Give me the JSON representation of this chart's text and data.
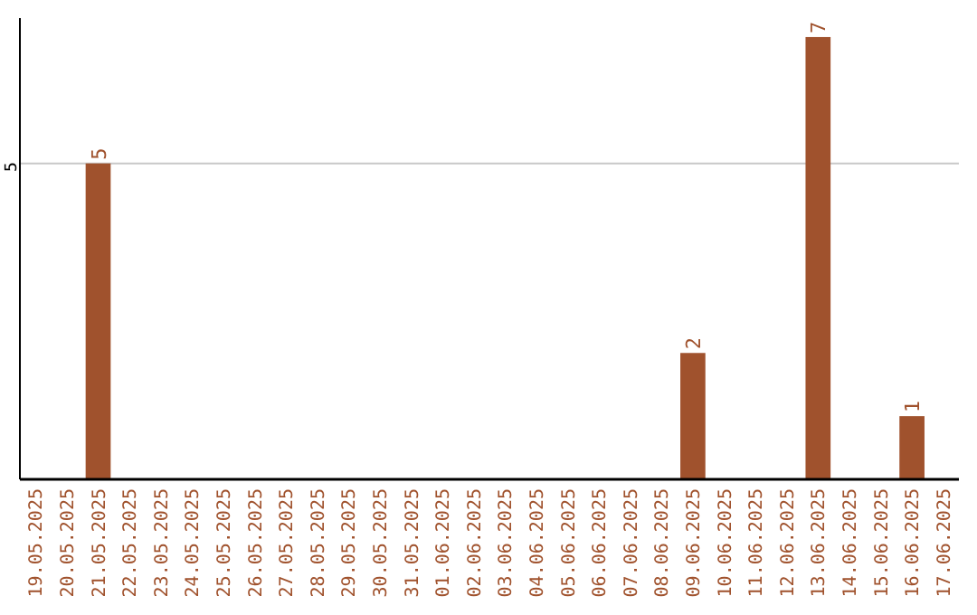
{
  "chart_data": {
    "type": "bar",
    "categories": [
      "19.05.2025",
      "20.05.2025",
      "21.05.2025",
      "22.05.2025",
      "23.05.2025",
      "24.05.2025",
      "25.05.2025",
      "26.05.2025",
      "27.05.2025",
      "28.05.2025",
      "29.05.2025",
      "30.05.2025",
      "31.05.2025",
      "01.06.2025",
      "02.06.2025",
      "03.06.2025",
      "04.06.2025",
      "05.06.2025",
      "06.06.2025",
      "07.06.2025",
      "08.06.2025",
      "09.06.2025",
      "10.06.2025",
      "11.06.2025",
      "12.06.2025",
      "13.06.2025",
      "14.06.2025",
      "15.06.2025",
      "16.06.2025",
      "17.06.2025"
    ],
    "values": [
      0,
      0,
      5,
      0,
      0,
      0,
      0,
      0,
      0,
      0,
      0,
      0,
      0,
      0,
      0,
      0,
      0,
      0,
      0,
      0,
      0,
      2,
      0,
      0,
      0,
      7,
      0,
      0,
      1,
      0
    ],
    "value_labels": [
      null,
      null,
      "5",
      null,
      null,
      null,
      null,
      null,
      null,
      null,
      null,
      null,
      null,
      null,
      null,
      null,
      null,
      null,
      null,
      null,
      null,
      "2",
      null,
      null,
      null,
      "7",
      null,
      null,
      "1",
      null
    ],
    "color": "#a0522d",
    "ylim": [
      0,
      7.3
    ],
    "yticks": [
      5
    ],
    "grid": "y"
  }
}
